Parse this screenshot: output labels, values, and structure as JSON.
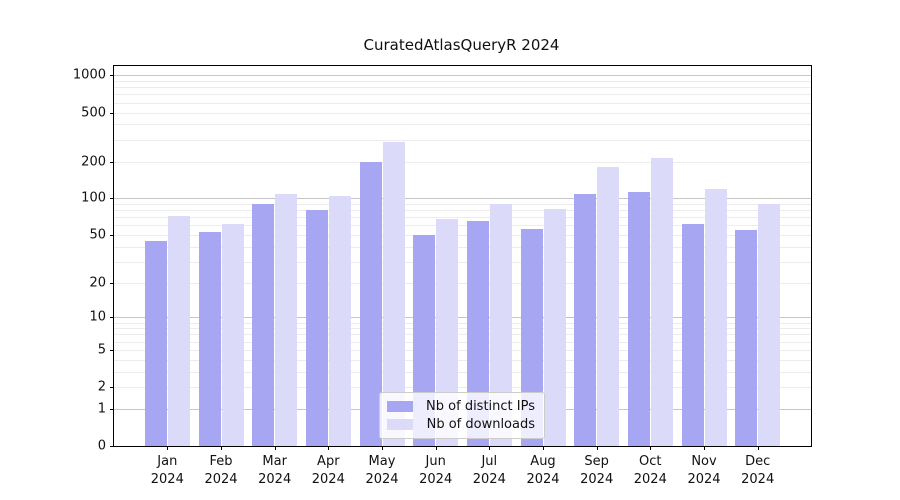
{
  "chart_data": {
    "type": "bar",
    "title": "CuratedAtlasQueryR 2024",
    "categories": [
      "Jan 2024",
      "Feb 2024",
      "Mar 2024",
      "Apr 2024",
      "May 2024",
      "Jun 2024",
      "Jul 2024",
      "Aug 2024",
      "Sep 2024",
      "Oct 2024",
      "Nov 2024",
      "Dec 2024"
    ],
    "x_tick_lines": [
      [
        "Jan",
        "2024"
      ],
      [
        "Feb",
        "2024"
      ],
      [
        "Mar",
        "2024"
      ],
      [
        "Apr",
        "2024"
      ],
      [
        "May",
        "2024"
      ],
      [
        "Jun",
        "2024"
      ],
      [
        "Jul",
        "2024"
      ],
      [
        "Aug",
        "2024"
      ],
      [
        "Sep",
        "2024"
      ],
      [
        "Oct",
        "2024"
      ],
      [
        "Nov",
        "2024"
      ],
      [
        "Dec",
        "2024"
      ]
    ],
    "series": [
      {
        "name": "Nb of distinct IPs",
        "color": "#a6a6f2",
        "values": [
          45,
          53,
          90,
          80,
          200,
          50,
          65,
          56,
          108,
          112,
          62,
          55
        ]
      },
      {
        "name": "Nb of downloads",
        "color": "#dbdbf9",
        "values": [
          72,
          62,
          108,
          105,
          290,
          68,
          90,
          82,
          182,
          215,
          120,
          90
        ]
      }
    ],
    "xlabel": "",
    "ylabel": "",
    "yscale": "log1p",
    "ylim": [
      0,
      1190
    ],
    "y_ticks": [
      0,
      1,
      2,
      5,
      10,
      20,
      50,
      100,
      200,
      500,
      1000
    ],
    "grid_major_values": [
      1,
      10,
      100,
      1000
    ],
    "grid": "on",
    "legend_position": "lower center"
  },
  "colors": {
    "grid_major": "#c6c6c6",
    "grid_minor": "#ececec",
    "spine": "#000000",
    "background": "#ffffff"
  }
}
